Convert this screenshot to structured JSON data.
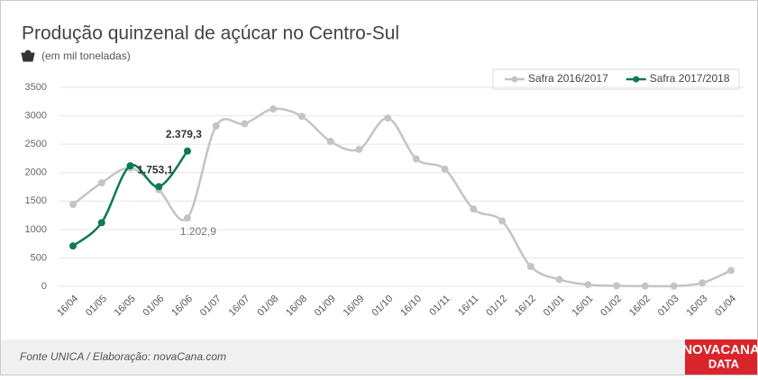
{
  "chart_data": {
    "type": "line",
    "title": "Produção quinzenal de açúcar no Centro-Sul",
    "subtitle": "(em mil toneladas)",
    "source": "Fonte UNICA / Elaboração: novaCana.com",
    "logo": [
      "NOVACANA",
      "DATA"
    ],
    "categories": [
      "16/04",
      "01/05",
      "16/05",
      "01/06",
      "16/06",
      "01/07",
      "16/07",
      "01/08",
      "16/08",
      "01/09",
      "16/09",
      "01/10",
      "16/10",
      "01/11",
      "16/11",
      "01/12",
      "16/12",
      "01/01",
      "16/01",
      "01/02",
      "16/02",
      "01/03",
      "16/03",
      "01/04"
    ],
    "series": [
      {
        "name": "Safra 2016/2017",
        "color": "#c4c4c4",
        "values": [
          1440,
          1820,
          2080,
          1700,
          1202.9,
          2820,
          2860,
          3120,
          2990,
          2550,
          2410,
          2960,
          2240,
          2060,
          1360,
          1150,
          350,
          120,
          30,
          10,
          5,
          5,
          60,
          280
        ],
        "value_labels": [
          null,
          null,
          null,
          null,
          "1.202,9",
          null,
          null,
          null,
          null,
          null,
          null,
          null,
          null,
          null,
          null,
          null,
          null,
          null,
          null,
          null,
          null,
          null,
          null,
          null
        ]
      },
      {
        "name": "Safra 2017/2018",
        "color": "#0e7a50",
        "values": [
          710,
          1120,
          2120,
          1753.1,
          2379.3,
          null,
          null,
          null,
          null,
          null,
          null,
          null,
          null,
          null,
          null,
          null,
          null,
          null,
          null,
          null,
          null,
          null,
          null,
          null
        ],
        "value_labels": [
          null,
          null,
          null,
          "1.753,1",
          "2.379,3",
          null,
          null,
          null,
          null,
          null,
          null,
          null,
          null,
          null,
          null,
          null,
          null,
          null,
          null,
          null,
          null,
          null,
          null,
          null
        ]
      }
    ],
    "ylim": [
      0,
      3500
    ],
    "yticks": [
      0,
      500,
      1000,
      1500,
      2000,
      2500,
      3000,
      3500
    ],
    "grid": true,
    "legend": "top-right"
  }
}
